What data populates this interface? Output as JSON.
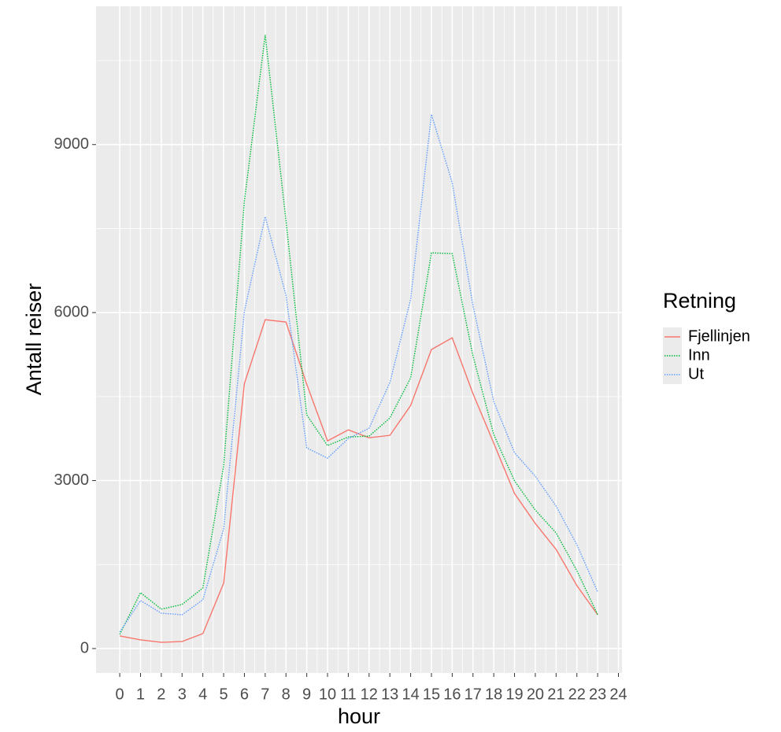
{
  "chart_data": {
    "type": "line",
    "x_label": "hour",
    "y_label": "Antall reiser",
    "legend_title": "Retning",
    "x": [
      0,
      1,
      2,
      3,
      4,
      5,
      6,
      7,
      8,
      9,
      10,
      11,
      12,
      13,
      14,
      15,
      16,
      17,
      18,
      19,
      20,
      21,
      22,
      23
    ],
    "series": [
      {
        "name": "Fjellinjen",
        "color": "#f8766d",
        "linetype": "solid",
        "values": [
          225,
          155,
          112,
          126,
          267,
          1166,
          4735,
          5873,
          5831,
          4720,
          3709,
          3906,
          3765,
          3807,
          4341,
          5339,
          5550,
          4552,
          3667,
          2768,
          2234,
          1770,
          1124,
          604
        ]
      },
      {
        "name": "Inn",
        "color": "#00ba38",
        "linetype": "dotted",
        "values": [
          253,
          998,
          703,
          787,
          1082,
          3260,
          7994,
          10959,
          7643,
          4173,
          3625,
          3779,
          3793,
          4117,
          4833,
          7067,
          7053,
          5227,
          3822,
          2993,
          2473,
          2065,
          1391,
          604
        ]
      },
      {
        "name": "Ut",
        "color": "#619cff",
        "linetype": "dotted",
        "values": [
          295,
          857,
          632,
          604,
          871,
          2136,
          6027,
          7713,
          6308,
          3583,
          3400,
          3751,
          3934,
          4749,
          6238,
          9540,
          8318,
          6126,
          4412,
          3498,
          3077,
          2543,
          1855,
          1012
        ]
      }
    ],
    "xlim": [
      -1.14,
      24.17
    ],
    "ylim": [
      -436,
      11470
    ],
    "xticks": [
      0,
      1,
      2,
      3,
      4,
      5,
      6,
      7,
      8,
      9,
      10,
      11,
      12,
      13,
      14,
      15,
      16,
      17,
      18,
      19,
      20,
      21,
      22,
      23,
      24
    ],
    "yticks": [
      0,
      3000,
      6000,
      9000
    ],
    "grid": true
  }
}
